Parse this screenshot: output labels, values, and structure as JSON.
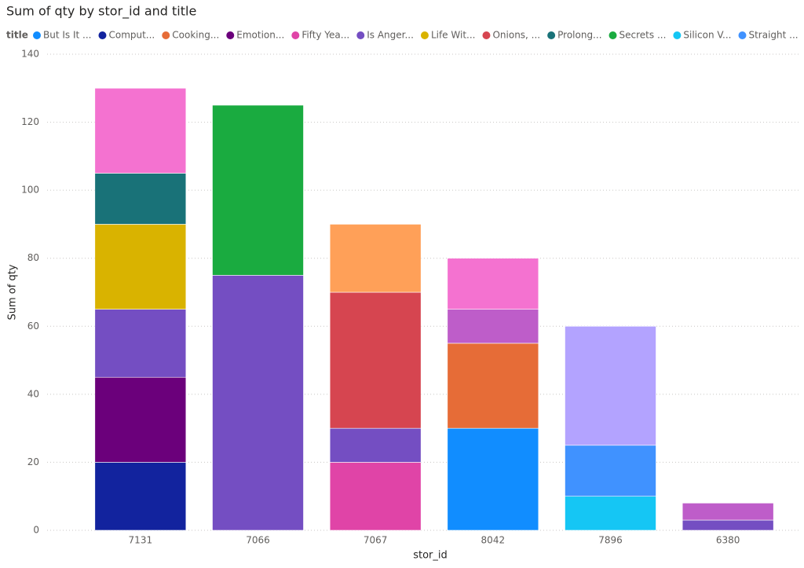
{
  "chart_data": {
    "type": "stacked_bar",
    "title": "Sum of qty by stor_id and title",
    "legend_title": "title",
    "x_label": "stor_id",
    "y_label": "Sum of qty",
    "categories": [
      "7131",
      "7066",
      "7067",
      "8042",
      "7896",
      "6380"
    ],
    "ylim": [
      0,
      140
    ],
    "yticks": [
      0,
      20,
      40,
      60,
      80,
      100,
      120,
      140
    ],
    "grid": true,
    "series": [
      {
        "name": "But Is It ...",
        "color": "#118DFF",
        "values": [
          null,
          null,
          null,
          30,
          null,
          null
        ]
      },
      {
        "name": "Comput...",
        "color": "#12239E",
        "values": [
          20,
          null,
          null,
          null,
          null,
          null
        ]
      },
      {
        "name": "Cooking...",
        "color": "#E66C37",
        "values": [
          null,
          null,
          null,
          25,
          null,
          null
        ]
      },
      {
        "name": "Emotion...",
        "color": "#6B007B",
        "values": [
          25,
          null,
          null,
          null,
          null,
          null
        ]
      },
      {
        "name": "Fifty Yea...",
        "color": "#E044A7",
        "values": [
          null,
          null,
          20,
          null,
          null,
          null
        ]
      },
      {
        "name": "Is Anger...",
        "color": "#744EC2",
        "values": [
          20,
          75,
          10,
          null,
          null,
          3
        ]
      },
      {
        "name": "Life Wit...",
        "color": "#D9B300",
        "values": [
          25,
          null,
          null,
          null,
          null,
          null
        ]
      },
      {
        "name": "Onions, ...",
        "color": "#D64550",
        "values": [
          null,
          null,
          40,
          null,
          null,
          null
        ]
      },
      {
        "name": "Prolong...",
        "color": "#197278",
        "values": [
          15,
          null,
          null,
          null,
          null,
          null
        ]
      },
      {
        "name": "Secrets ...",
        "color": "#1AAB40",
        "values": [
          null,
          50,
          null,
          null,
          null,
          null
        ]
      },
      {
        "name": "Silicon V...",
        "color": "#15C6F4",
        "values": [
          null,
          null,
          null,
          null,
          10,
          null
        ]
      },
      {
        "name": "Straight ...",
        "color": "#4092FF",
        "values": [
          null,
          null,
          null,
          null,
          15,
          null
        ]
      },
      {
        "color": "#FFA058",
        "values": [
          null,
          null,
          20,
          null,
          null,
          null
        ]
      },
      {
        "color": "#BE5DC9",
        "values": [
          null,
          null,
          null,
          10,
          null,
          5
        ]
      },
      {
        "color": "#F472D0",
        "values": [
          25,
          null,
          null,
          15,
          null,
          null
        ]
      },
      {
        "color": "#B3A3FF",
        "values": [
          null,
          null,
          null,
          null,
          35,
          null
        ]
      }
    ]
  }
}
